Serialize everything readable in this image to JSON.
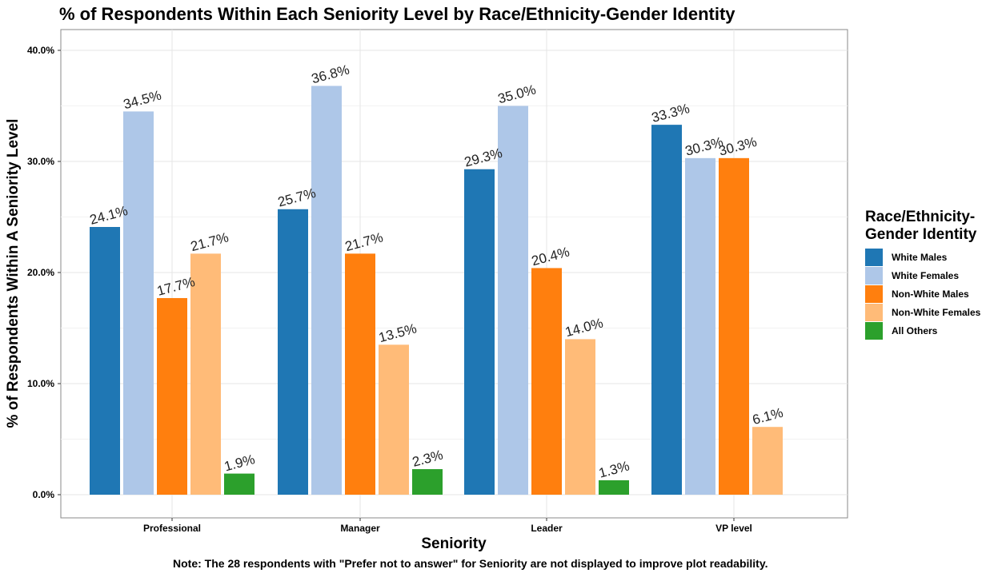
{
  "chart_data": {
    "type": "bar",
    "title": "% of Respondents Within Each Seniority Level by Race/Ethnicity-Gender Identity",
    "xlabel": "Seniority",
    "ylabel": "% of Respondents Within A Seniority Level",
    "ylim": [
      -0.01,
      0.42
    ],
    "yticks": [
      0.0,
      0.1,
      0.2,
      0.3,
      0.4
    ],
    "ytick_labels": [
      "0.0%",
      "10.0%",
      "20.0%",
      "30.0%",
      "40.0%"
    ],
    "grid": true,
    "categories": [
      "Professional",
      "Manager",
      "Leader",
      "VP level"
    ],
    "legend_title": [
      "Race/Ethnicity-",
      "Gender Identity"
    ],
    "legend_position": "right",
    "series": [
      {
        "name": "White Males",
        "color": "#1f77b4",
        "values": [
          0.241,
          0.257,
          0.293,
          0.333
        ],
        "labels": [
          "24.1%",
          "25.7%",
          "29.3%",
          "33.3%"
        ]
      },
      {
        "name": "White Females",
        "color": "#aec7e8",
        "values": [
          0.345,
          0.368,
          0.35,
          0.303
        ],
        "labels": [
          "34.5%",
          "36.8%",
          "35.0%",
          "30.3%"
        ]
      },
      {
        "name": "Non-White Males",
        "color": "#ff7f0e",
        "values": [
          0.177,
          0.217,
          0.204,
          0.303
        ],
        "labels": [
          "17.7%",
          "21.7%",
          "20.4%",
          "30.3%"
        ]
      },
      {
        "name": "Non-White Females",
        "color": "#ffbb78",
        "values": [
          0.217,
          0.135,
          0.14,
          0.061
        ],
        "labels": [
          "21.7%",
          "13.5%",
          "14.0%",
          "6.1%"
        ]
      },
      {
        "name": "All Others",
        "color": "#2ca02c",
        "values": [
          0.019,
          0.023,
          0.013,
          null
        ],
        "labels": [
          "1.9%",
          "2.3%",
          "1.3%",
          null
        ]
      }
    ],
    "note": "Note: The 28 respondents with \"Prefer not to answer\" for Seniority are not displayed to improve plot readability."
  }
}
